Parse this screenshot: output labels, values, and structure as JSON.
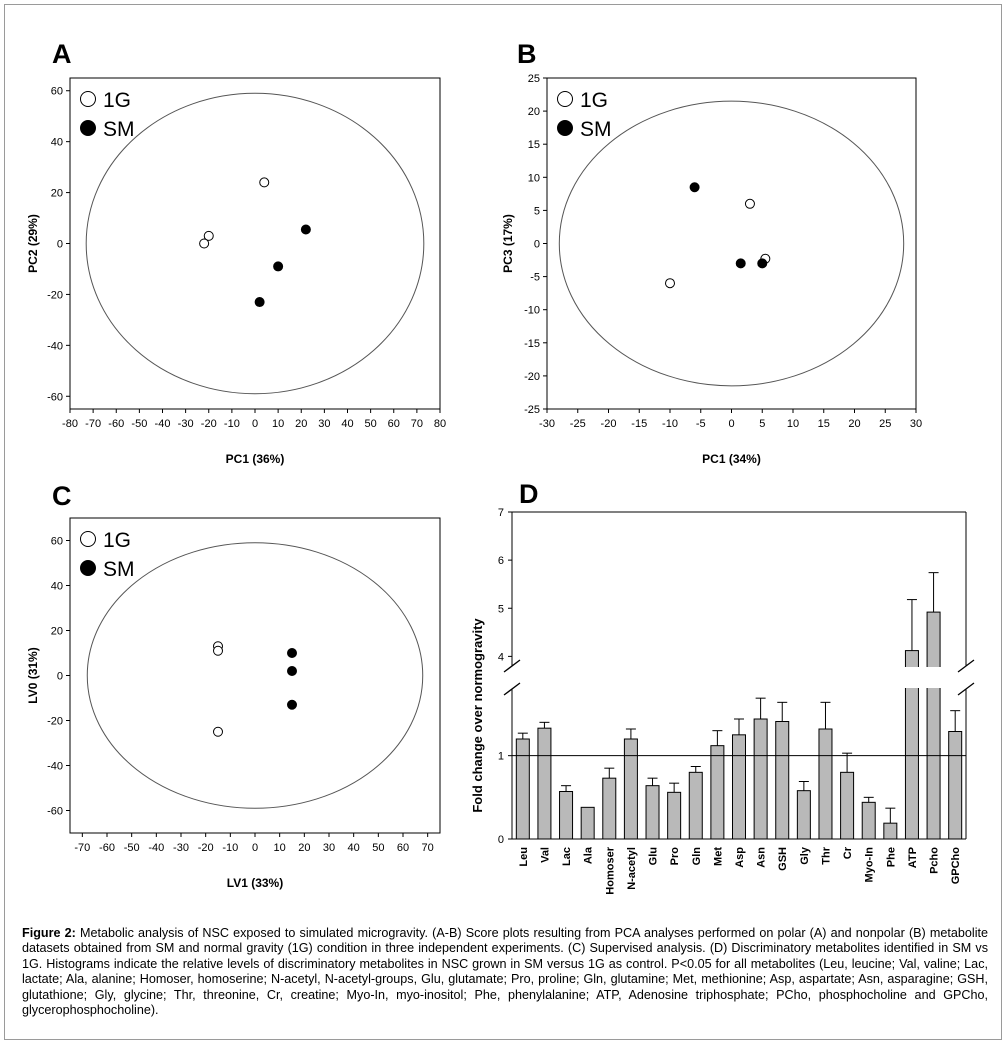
{
  "legend": {
    "open_label": "1G",
    "filled_label": "SM"
  },
  "colors": {
    "bar_fill": "#b9b9b9",
    "marker_fill": "#000000",
    "ellipse_stroke": "#555555"
  },
  "chart_data": [
    {
      "panel": "A",
      "type": "scatter",
      "xlabel": "PC1 (36%)",
      "ylabel": "PC2 (29%)",
      "xlim": [
        -80,
        80
      ],
      "ylim": [
        -65,
        65
      ],
      "xticks": [
        -80,
        -70,
        -60,
        -50,
        -40,
        -30,
        -20,
        -10,
        0,
        10,
        20,
        30,
        40,
        50,
        60,
        70,
        80
      ],
      "yticks": [
        60,
        40,
        20,
        0,
        -20,
        -40,
        -60
      ],
      "ellipse": {
        "cx": 0,
        "cy": 0,
        "rx": 73,
        "ry": 59
      },
      "series": [
        {
          "name": "1G",
          "points": [
            [
              4,
              24
            ],
            [
              -20,
              3
            ],
            [
              -22,
              0
            ]
          ]
        },
        {
          "name": "SM",
          "points": [
            [
              22,
              5.5
            ],
            [
              10,
              -9
            ],
            [
              2,
              -23
            ]
          ]
        }
      ]
    },
    {
      "panel": "B",
      "type": "scatter",
      "xlabel": "PC1 (34%)",
      "ylabel": "PC3 (17%)",
      "xlim": [
        -30,
        30
      ],
      "ylim": [
        -25,
        25
      ],
      "xticks": [
        -30,
        -25,
        -20,
        -15,
        -10,
        -5,
        0,
        5,
        10,
        15,
        20,
        25,
        30
      ],
      "yticks": [
        25,
        20,
        15,
        10,
        5,
        0,
        -5,
        -10,
        -15,
        -20,
        -25
      ],
      "ellipse": {
        "cx": 0,
        "cy": 0,
        "rx": 28,
        "ry": 21.5
      },
      "series": [
        {
          "name": "1G",
          "points": [
            [
              3,
              6
            ],
            [
              5.5,
              -2.3
            ],
            [
              -10,
              -6
            ]
          ]
        },
        {
          "name": "SM",
          "points": [
            [
              -6,
              8.5
            ],
            [
              1.5,
              -3
            ],
            [
              5,
              -3
            ]
          ]
        }
      ]
    },
    {
      "panel": "C",
      "type": "scatter",
      "xlabel": "LV1 (33%)",
      "ylabel": "LV0 (31%)",
      "xlim": [
        -75,
        75
      ],
      "ylim": [
        -70,
        70
      ],
      "xticks": [
        -70,
        -60,
        -50,
        -40,
        -30,
        -20,
        -10,
        0,
        10,
        20,
        30,
        40,
        50,
        60,
        70
      ],
      "yticks": [
        60,
        40,
        20,
        0,
        -20,
        -40,
        -60
      ],
      "ellipse": {
        "cx": 0,
        "cy": 0,
        "rx": 68,
        "ry": 59
      },
      "series": [
        {
          "name": "1G",
          "points": [
            [
              -15,
              13
            ],
            [
              -15,
              11
            ],
            [
              -15,
              -25
            ]
          ]
        },
        {
          "name": "SM",
          "points": [
            [
              15,
              10
            ],
            [
              15,
              2
            ],
            [
              15,
              -13
            ]
          ]
        }
      ]
    },
    {
      "panel": "D",
      "type": "bar",
      "ylabel": "Fold change over normogravity",
      "yticks": [
        0,
        1,
        4,
        5,
        6,
        7
      ],
      "axis_break": [
        1.8,
        3.8
      ],
      "reference_line": 1,
      "categories": [
        "Leu",
        "Val",
        "Lac",
        "Ala",
        "Homoser",
        "N-acetyl",
        "Glu",
        "Pro",
        "Gln",
        "Met",
        "Asp",
        "Asn",
        "GSH",
        "Gly",
        "Thr",
        "Cr",
        "Myo-In",
        "Phe",
        "ATP",
        "Pcho",
        "GPCho"
      ],
      "values": [
        1.2,
        1.33,
        0.57,
        0.38,
        0.73,
        1.2,
        0.64,
        0.56,
        0.8,
        1.12,
        1.25,
        1.44,
        1.41,
        0.58,
        1.32,
        0.8,
        0.44,
        0.19,
        4.12,
        4.92,
        1.29
      ],
      "errors": [
        0.07,
        0.07,
        0.07,
        0.0,
        0.12,
        0.12,
        0.09,
        0.11,
        0.07,
        0.18,
        0.19,
        0.25,
        0.23,
        0.11,
        0.32,
        0.23,
        0.06,
        0.18,
        1.06,
        0.82,
        0.25
      ]
    }
  ],
  "caption": {
    "lead": "Figure 2:",
    "text": "Metabolic analysis of NSC exposed to simulated microgravity. (A-B) Score plots resulting from PCA analyses performed on polar (A) and nonpolar (B) metabolite datasets obtained from SM and normal gravity (1G) condition in three independent experiments. (C) Supervised analysis. (D) Discriminatory metabolites identified in SM vs 1G. Histograms indicate the relative levels of discriminatory metabolites in NSC grown in SM versus 1G as control. P<0.05 for all metabolites (Leu, leucine; Val, valine; Lac, lactate; Ala, alanine; Homoser, homoserine; N-acetyl, N-acetyl-groups, Glu, glutamate; Pro, proline; Gln, glutamine; Met, methionine; Asp, aspartate; Asn, asparagine; GSH, glutathione; Gly, glycine; Thr, threonine, Cr, creatine; Myo-In, myo-inositol; Phe, phenylalanine; ATP, Adenosine triphosphate; PCho, phosphocholine and GPCho, glycerophosphocholine)."
  }
}
